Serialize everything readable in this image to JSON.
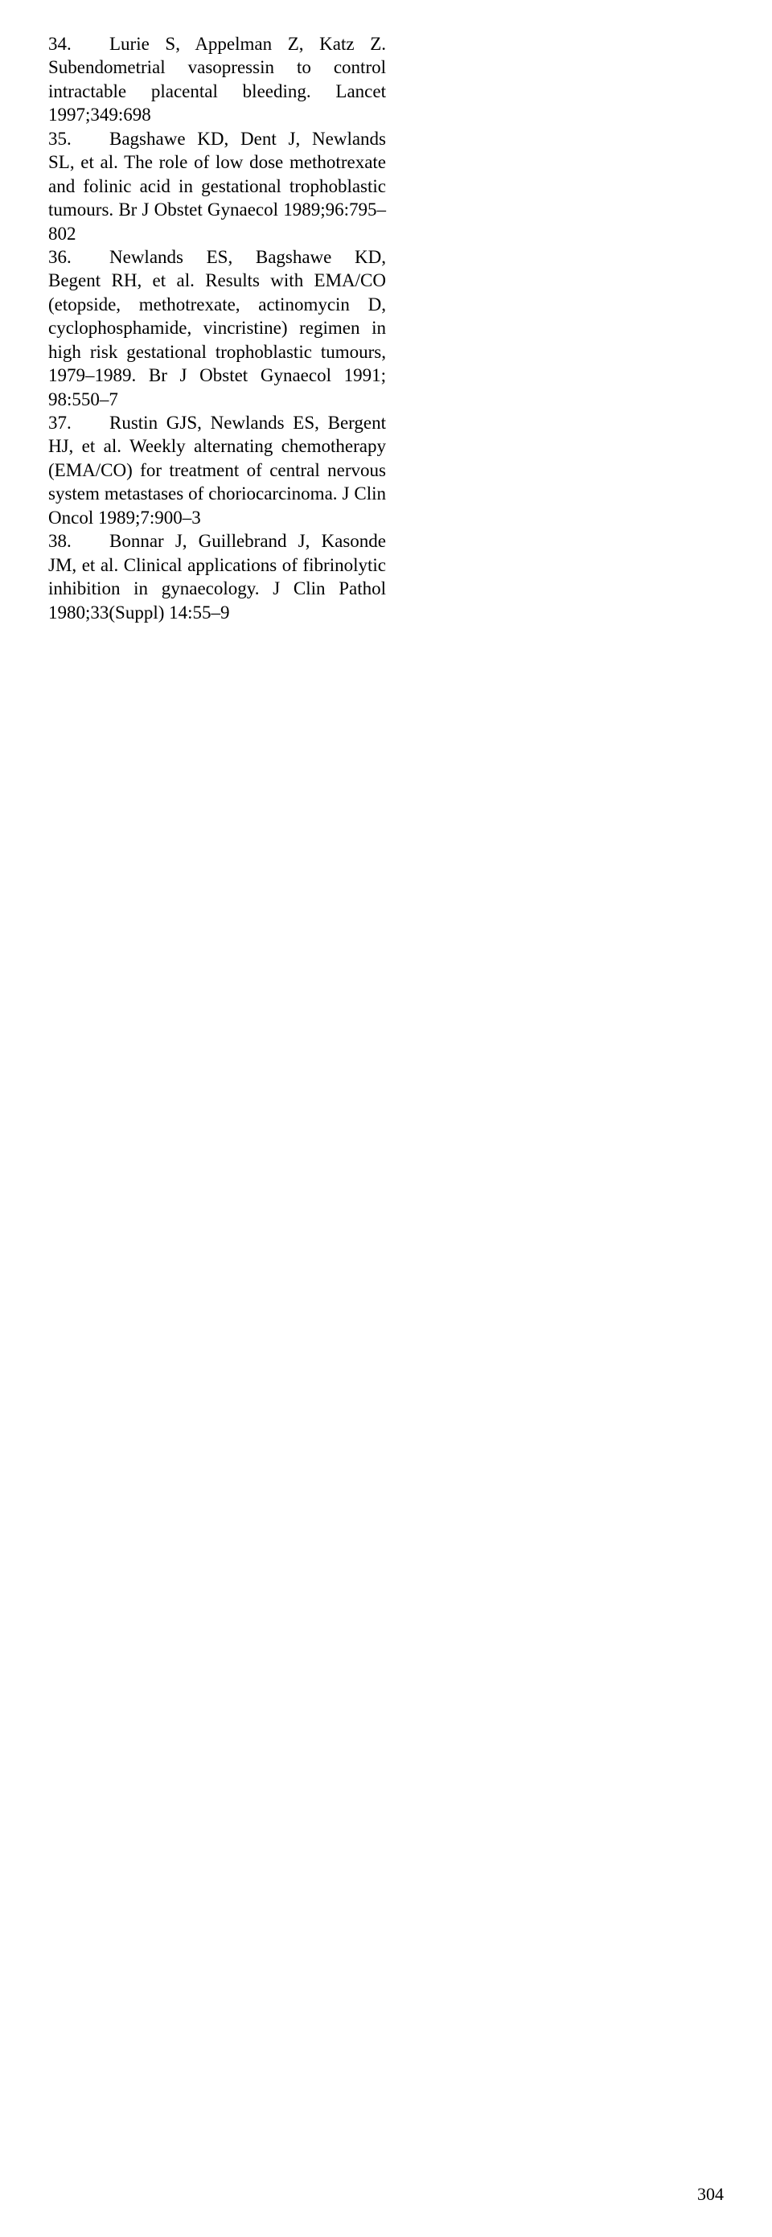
{
  "references": {
    "r34": {
      "num": "34.",
      "text": "Lurie S, Appelman Z, Katz Z. Subendometrial vasopressin to control intractable placental bleeding. Lancet 1997;349:698"
    },
    "r35": {
      "num": "35.",
      "text": "Bagshawe KD, Dent J, Newlands SL, et al. The role of low dose methotrexate and folinic acid in gestational trophoblastic tumours. Br J Obstet Gynaecol 1989;96:795–802"
    },
    "r36": {
      "num": "36.",
      "text": "Newlands ES, Bagshawe KD, Begent RH, et al. Results with EMA/CO (etopside, methotrexate, actinomycin D, cyclophosphamide, vincristine) regimen in high risk gestational trophoblastic tumours, 1979–1989. Br J Obstet Gynaecol 1991; 98:550–7"
    },
    "r37": {
      "num": "37.",
      "text": "Rustin GJS, Newlands ES, Bergent HJ, et al. Weekly alternating chemotherapy (EMA/CO) for treatment of central nervous system metastases of choriocarcinoma. J Clin Oncol 1989;7:900–3"
    },
    "r38": {
      "num": "38.",
      "text": "Bonnar J, Guillebrand J, Kasonde JM, et al. Clinical applications of fibrinolytic inhibition in gynaecology. J Clin Pathol 1980;33(Suppl) 14:55–9"
    }
  },
  "page_number": "304"
}
